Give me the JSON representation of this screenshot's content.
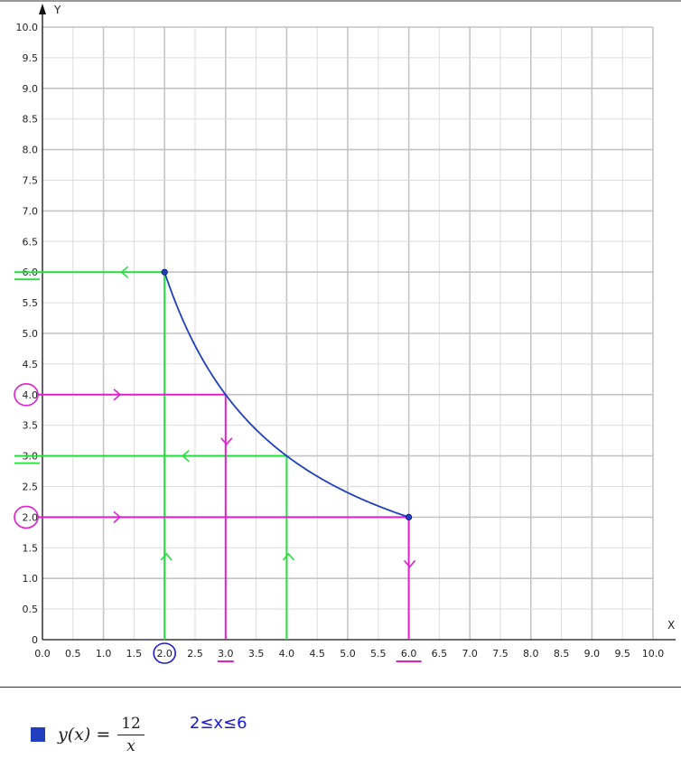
{
  "chart_data": {
    "type": "line",
    "title": "",
    "xlabel": "X",
    "ylabel": "Y",
    "xlim": [
      0,
      10
    ],
    "ylim": [
      0,
      10
    ],
    "grid": true,
    "x_ticks": [
      "0.0",
      "0.5",
      "1.0",
      "1.5",
      "2.0",
      "2.5",
      "3.0",
      "3.5",
      "4.0",
      "4.5",
      "5.0",
      "5.5",
      "6.0",
      "6.5",
      "7.0",
      "7.5",
      "8.0",
      "8.5",
      "9.0",
      "9.5",
      "10.0"
    ],
    "y_ticks": [
      "0",
      "0.5",
      "1.0",
      "1.5",
      "2.0",
      "2.5",
      "3.0",
      "3.5",
      "4.0",
      "4.5",
      "5.0",
      "5.5",
      "6.0",
      "6.5",
      "7.0",
      "7.5",
      "8.0",
      "8.5",
      "9.0",
      "9.5",
      "10.0"
    ],
    "series": [
      {
        "function": "12/x",
        "color": "#1f3fbf",
        "x": [
          2.0,
          2.5,
          3.0,
          3.5,
          4.0,
          4.5,
          5.0,
          5.5,
          6.0
        ],
        "y": [
          6.0,
          4.8,
          4.0,
          3.43,
          3.0,
          2.67,
          2.4,
          2.18,
          2.0
        ],
        "endpoints": [
          [
            2.0,
            6.0
          ],
          [
            6.0,
            2.0
          ]
        ]
      }
    ],
    "annotations": {
      "green_guides": [
        {
          "x": 2.0,
          "y": 6.0,
          "arrows": "up-along-x-then-left-to-y"
        },
        {
          "x": 4.0,
          "y": 3.0,
          "arrows": "up-along-x-then-left-to-y"
        }
      ],
      "magenta_guides": [
        {
          "x": 3.0,
          "y": 4.0,
          "arrows": "right-from-y-then-down-to-x"
        },
        {
          "x": 6.0,
          "y": 2.0,
          "arrows": "right-from-y-then-down-to-x"
        }
      ],
      "circled_y_ticks": [
        4.0,
        2.0
      ],
      "circled_x_ticks": [
        2.0
      ],
      "underlined_x_ticks": [
        3.0,
        6.0
      ],
      "underlined_y_ticks": [
        6.0,
        3.0
      ]
    }
  },
  "legend": {
    "swatch_color": "#1f3fbf",
    "formula_lhs": "y(x) =",
    "formula_num": "12",
    "formula_den": "x",
    "domain_note": "2≤x≤6"
  }
}
